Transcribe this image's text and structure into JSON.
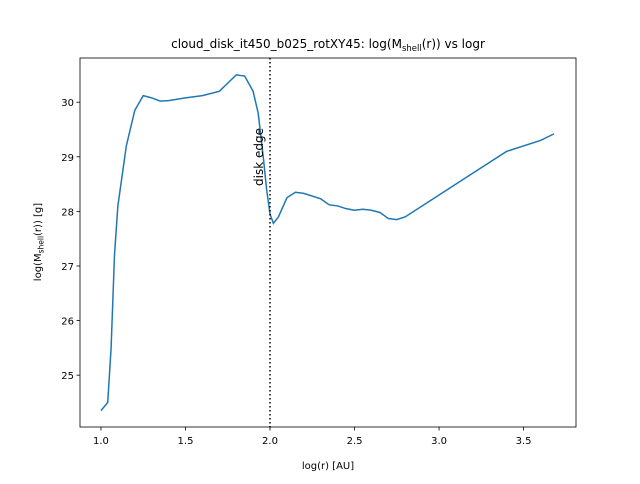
{
  "chart_data": {
    "type": "line",
    "title": {
      "main": "cloud_disk_it450_b025_rotXY45: log(M",
      "sub": "shell",
      "end": "(r)) vs logr"
    },
    "xlabel": "log(r) [AU]",
    "ylabel": {
      "main": "log(M",
      "sub": "shell",
      "end": "(r)) [g]"
    },
    "x": [
      1.0,
      1.04,
      1.06,
      1.08,
      1.1,
      1.15,
      1.2,
      1.25,
      1.3,
      1.35,
      1.4,
      1.5,
      1.6,
      1.7,
      1.75,
      1.8,
      1.85,
      1.9,
      1.93,
      1.96,
      1.98,
      2.0,
      2.02,
      2.05,
      2.1,
      2.15,
      2.2,
      2.3,
      2.35,
      2.4,
      2.45,
      2.5,
      2.55,
      2.6,
      2.65,
      2.7,
      2.75,
      2.8,
      3.0,
      3.2,
      3.4,
      3.6,
      3.68
    ],
    "series": [
      {
        "color": "#1f77b4",
        "values": [
          24.35,
          24.5,
          25.5,
          27.2,
          28.1,
          29.2,
          29.85,
          30.12,
          30.08,
          30.02,
          30.03,
          30.08,
          30.12,
          30.2,
          30.35,
          30.5,
          30.48,
          30.2,
          29.8,
          29.0,
          28.4,
          27.95,
          27.78,
          27.9,
          28.25,
          28.35,
          28.33,
          28.23,
          28.12,
          28.1,
          28.05,
          28.02,
          28.04,
          28.02,
          27.98,
          27.87,
          27.85,
          27.9,
          28.3,
          28.7,
          29.1,
          29.3,
          29.42
        ]
      }
    ],
    "vline": {
      "x": 2.0,
      "label": "disk edge",
      "color": "#000000"
    },
    "xlim": [
      0.876,
      3.81
    ],
    "ylim": [
      24.05,
      30.81
    ],
    "xticks": [
      {
        "value": 1.0,
        "label": "1.0"
      },
      1.5,
      {
        "value": 2.0,
        "label": "2.0"
      },
      2.5,
      {
        "value": 3.0,
        "label": "3.0"
      },
      3.5
    ],
    "yticks": [
      25,
      26,
      27,
      28,
      29,
      30
    ],
    "grid": false
  }
}
